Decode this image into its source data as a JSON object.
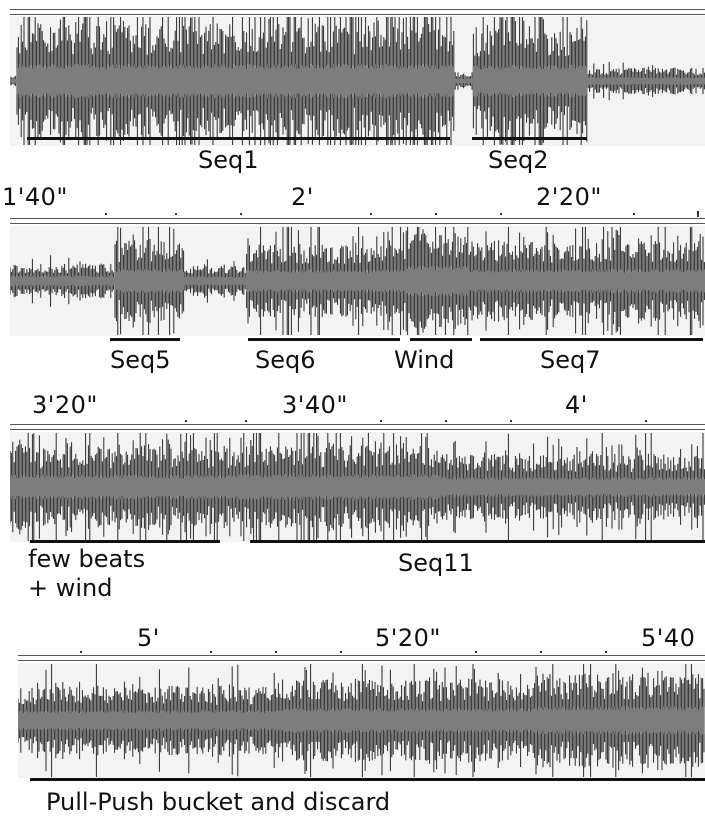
{
  "rows": [
    {
      "time_labels": [],
      "segments": [
        {
          "label": "Seq1"
        },
        {
          "label": "Seq2"
        }
      ]
    },
    {
      "time_labels": [
        "1'40\"",
        "2'",
        "2'20\""
      ],
      "segments": [
        {
          "label": "Seq5"
        },
        {
          "label": "Seq6"
        },
        {
          "label": "Wind"
        },
        {
          "label": "Seq7"
        }
      ]
    },
    {
      "time_labels": [
        "3'20\"",
        "3'40\"",
        "4'"
      ],
      "segments": [
        {
          "label": "few beats\n+ wind"
        },
        {
          "label": "Seq11"
        }
      ]
    },
    {
      "time_labels": [
        "5'",
        "5'20\"",
        "5'40"
      ],
      "segments": [
        {
          "label": "Pull-Push bucket and discard"
        }
      ]
    }
  ],
  "colors": {
    "envelope": "#2a2a2a",
    "body": "#7d7d7d",
    "panel_bg": "#f3f3f3"
  }
}
